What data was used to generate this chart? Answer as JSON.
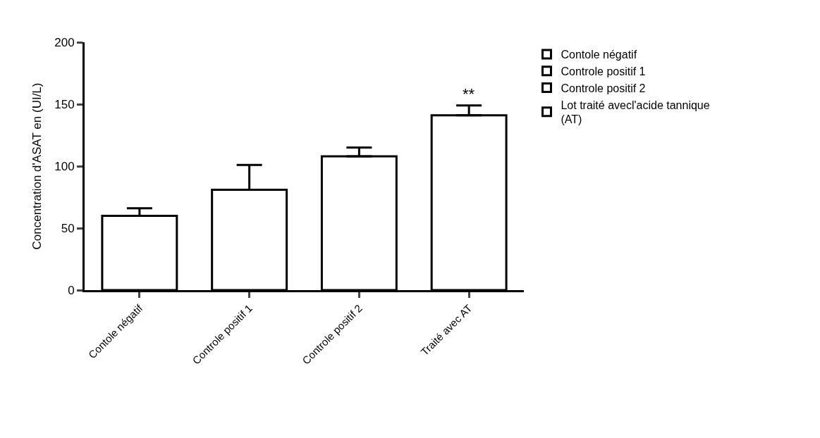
{
  "chart_data": {
    "type": "bar",
    "ylabel": "Concentration d'ASAT en (UI/L)",
    "categories": [
      "Contole négatif",
      "Controle positif 1",
      "Controle positif 2",
      "Traité avec AT"
    ],
    "series": [
      {
        "name": "Contole négatif",
        "color": "#000000",
        "values": [
          60,
          null,
          null,
          null
        ],
        "errors": [
          [
            60,
            66
          ],
          null,
          null,
          null
        ]
      },
      {
        "name": "Controle positif 1",
        "color": "#000000",
        "values": [
          null,
          81,
          null,
          null
        ],
        "errors": [
          null,
          [
            81,
            101
          ],
          null,
          null
        ]
      },
      {
        "name": "Controle positif 2",
        "color": "#000000",
        "values": [
          null,
          null,
          108,
          null
        ],
        "errors": [
          null,
          null,
          [
            108,
            115
          ],
          null
        ]
      },
      {
        "name": " Lot traité avecl'acide tannique (AT)",
        "color": "#000000",
        "values": [
          null,
          null,
          null,
          141
        ],
        "errors": [
          null,
          null,
          null,
          [
            141,
            149
          ]
        ]
      }
    ],
    "annotations": [
      "**"
    ],
    "ylim": [
      0,
      200
    ],
    "yticks": [
      0,
      50,
      100,
      150,
      200
    ],
    "legend": "top right"
  }
}
